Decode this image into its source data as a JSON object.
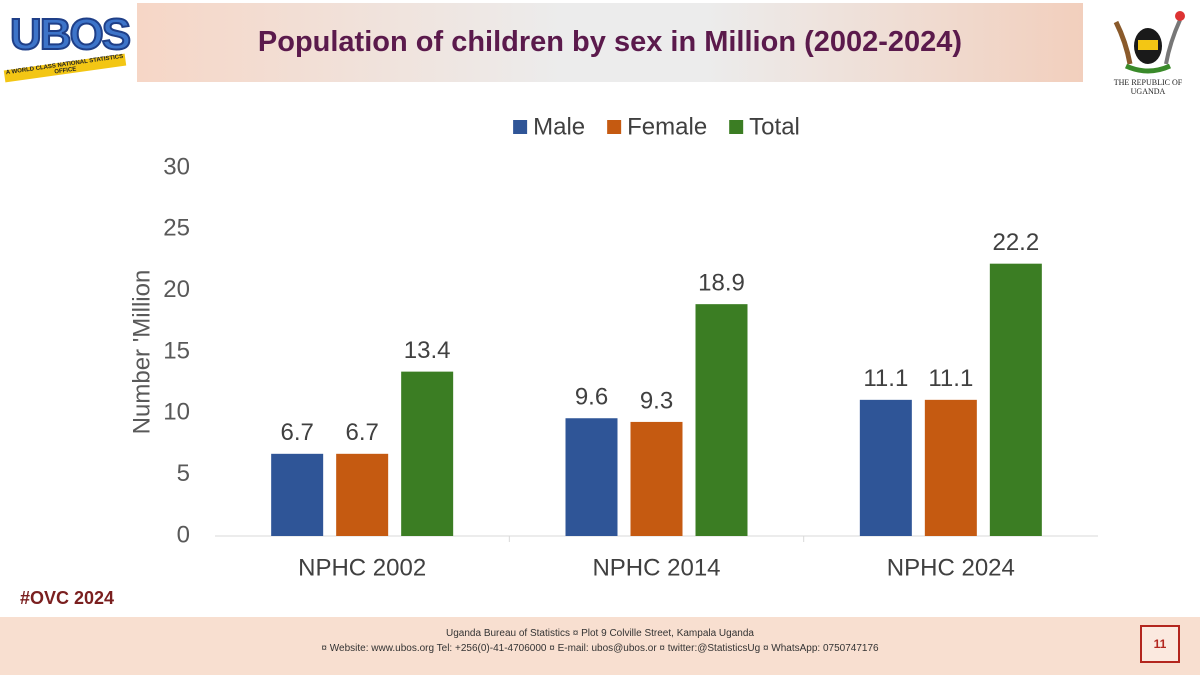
{
  "chart_data": {
    "type": "bar",
    "title": "Population of children by sex in Million (2002-2024)",
    "categories": [
      "NPHC 2002",
      "NPHC 2014",
      "NPHC 2024"
    ],
    "series": [
      {
        "name": "Male",
        "color": "#2f5597",
        "values": [
          6.7,
          9.6,
          11.1
        ]
      },
      {
        "name": "Female",
        "color": "#c55a11",
        "values": [
          6.7,
          9.3,
          11.1
        ]
      },
      {
        "name": "Total",
        "color": "#3b7d23",
        "values": [
          13.4,
          18.9,
          22.2
        ]
      }
    ],
    "y_label": "Number 'Million",
    "ylim": [
      0,
      30
    ],
    "yticks": [
      0,
      5,
      10,
      15,
      20,
      25,
      30
    ],
    "grid": false,
    "legend": "top"
  },
  "slide": {
    "logo_text": "UBOS",
    "logo_tagline": "A WORLD CLASS NATIONAL STATISTICS OFFICE",
    "coat_caption": "THE REPUBLIC OF UGANDA",
    "hashtag": "#OVC 2024",
    "footer_line1": "Uganda Bureau of Statistics ¤ Plot 9 Colville Street, Kampala Uganda",
    "footer_line2": "¤ Website: www.ubos.org Tel: +256(0)-41-4706000 ¤ E-mail: ubos@ubos.or ¤ twitter:@StatisticsUg ¤ WhatsApp: 0750747176",
    "page_number": "11"
  }
}
